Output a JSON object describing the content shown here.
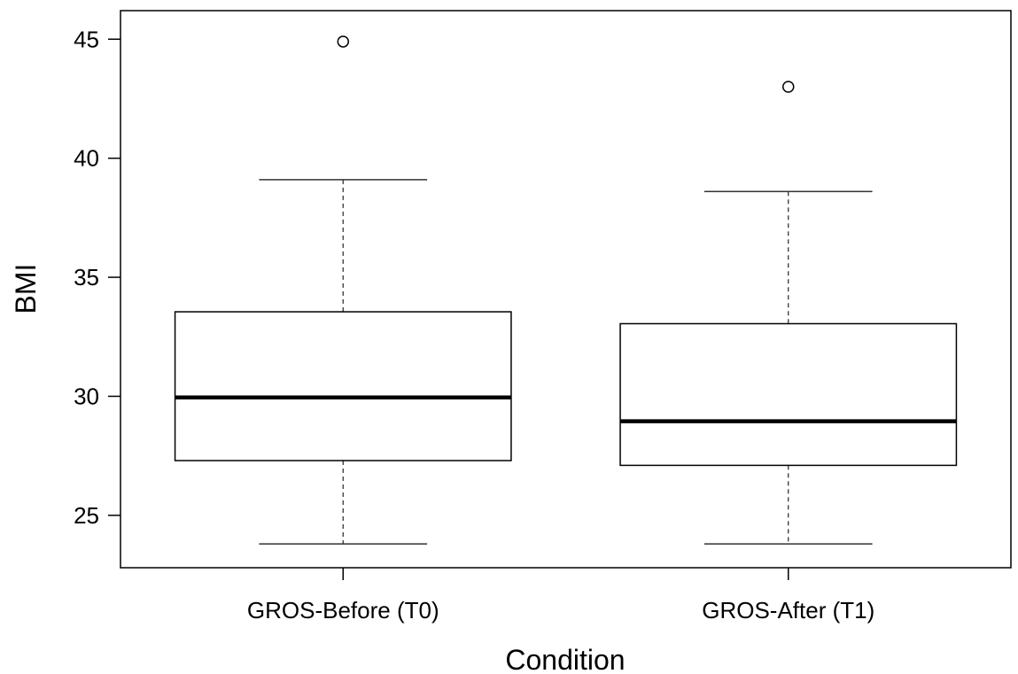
{
  "chart_data": {
    "type": "boxplot",
    "title": "",
    "xlabel": "Condition",
    "ylabel": "BMI",
    "ylim": [
      22.8,
      46.2
    ],
    "yticks": [
      25,
      30,
      35,
      40,
      45
    ],
    "grid": false,
    "legend": "none",
    "categories": [
      "GROS-Before (T0)",
      "GROS-After (T1)"
    ],
    "boxes": [
      {
        "category": "GROS-Before (T0)",
        "whisker_low": 23.8,
        "q1": 27.3,
        "median": 29.95,
        "q3": 33.55,
        "whisker_high": 39.1,
        "outliers": [
          44.9
        ]
      },
      {
        "category": "GROS-After (T1)",
        "whisker_low": 23.8,
        "q1": 27.1,
        "median": 28.95,
        "q3": 33.05,
        "whisker_high": 38.6,
        "outliers": [
          43.0
        ]
      }
    ],
    "colors": {
      "box_fill": "#ffffff",
      "stroke": "#000000",
      "whisker_stroke": "#333333"
    }
  }
}
